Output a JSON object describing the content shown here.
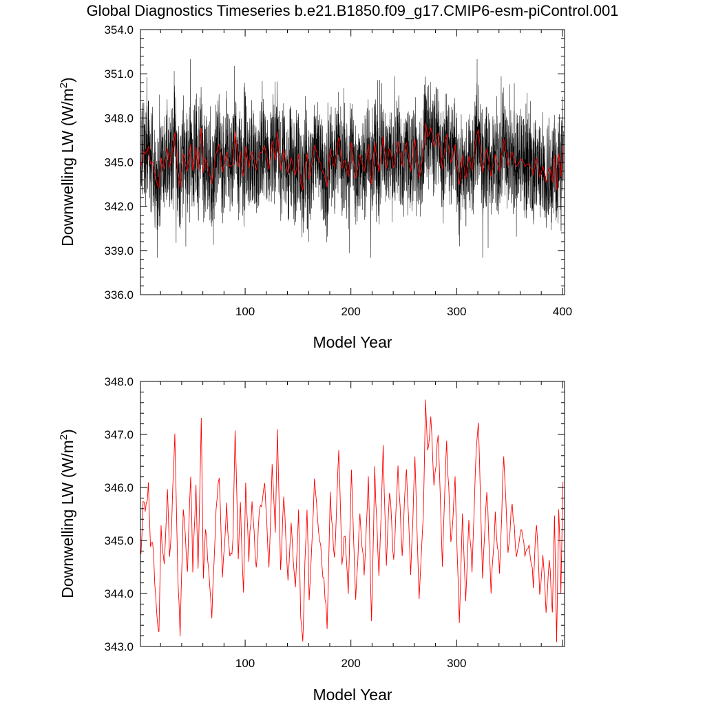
{
  "figure_title": "Global Diagnostics Timeseries b.e21.B1850.f09_g17.CMIP6-esm-piControl.001",
  "colors": {
    "monthly": "#000000",
    "annual": "#ff0000",
    "background": "#ffffff"
  },
  "chart_data": [
    {
      "type": "line",
      "title": "Global Diagnostics Timeseries b.e21.B1850.f09_g17.CMIP6-esm-piControl.001",
      "xlabel": "Model Year",
      "ylabel": "Downwelling LW (W/m",
      "ylabel_sup": "2",
      "ylabel_close": ")",
      "xlim": [
        1,
        402
      ],
      "ylim": [
        336.0,
        354.0
      ],
      "xticks": [
        100,
        200,
        300,
        400
      ],
      "xtick_labels": [
        "100",
        "200",
        "300",
        "400"
      ],
      "yticks": [
        336.0,
        339.0,
        342.0,
        345.0,
        348.0,
        351.0,
        354.0
      ],
      "ytick_labels": [
        "336.0",
        "339.0",
        "342.0",
        "345.0",
        "348.0",
        "351.0",
        "354.0"
      ],
      "series": [
        {
          "name": "monthly",
          "color": "#000000",
          "envelope": {
            "min": 338.5,
            "max": 352.0,
            "typical_low": 340.5,
            "typical_high": 349.5
          }
        },
        {
          "name": "annual",
          "color": "#ff0000",
          "ref": "annual_means"
        }
      ]
    },
    {
      "type": "line",
      "xlabel": "Model Year",
      "ylabel": "Downwelling LW (W/m",
      "ylabel_sup": "2",
      "ylabel_close": ")",
      "xlim": [
        1,
        402
      ],
      "ylim": [
        343.0,
        348.0
      ],
      "xticks": [
        100,
        200,
        300
      ],
      "xtick_labels": [
        "100",
        "200",
        "300"
      ],
      "yticks": [
        343.0,
        344.0,
        345.0,
        346.0,
        347.0,
        348.0
      ],
      "ytick_labels": [
        "343.0",
        "344.0",
        "345.0",
        "346.0",
        "347.0",
        "348.0"
      ],
      "series": [
        {
          "name": "annual",
          "color": "#ff0000",
          "ref": "annual_means"
        }
      ]
    }
  ],
  "annual_keypoints": {
    "years": [
      1,
      3,
      5,
      8,
      10,
      12,
      15,
      18,
      20,
      23,
      26,
      28,
      30,
      33,
      36,
      38,
      41,
      45,
      48,
      50,
      53,
      55,
      58,
      60,
      62,
      65,
      68,
      72,
      75,
      78,
      82,
      85,
      88,
      90,
      93,
      95,
      98,
      100,
      103,
      106,
      110,
      113,
      118,
      122,
      125,
      128,
      130,
      133,
      136,
      140,
      143,
      147,
      150,
      152,
      154,
      156,
      158,
      160,
      165,
      170,
      174,
      177,
      180,
      184,
      188,
      191,
      194,
      197,
      200,
      204,
      208,
      212,
      216,
      219,
      222,
      226,
      230,
      233,
      236,
      240,
      244,
      248,
      252,
      256,
      260,
      264,
      268,
      270,
      272,
      275,
      278,
      282,
      286,
      290,
      294,
      298,
      302,
      305,
      308,
      311,
      314,
      317,
      320,
      324,
      328,
      332,
      336,
      340,
      344,
      348,
      352,
      356,
      360,
      364,
      368,
      372,
      375,
      378,
      381,
      384,
      387,
      390,
      392,
      394,
      396,
      398,
      400,
      402
    ],
    "values": [
      344.7,
      345.7,
      345.5,
      346.0,
      344.8,
      345.0,
      343.9,
      343.2,
      345.2,
      344.5,
      346.0,
      344.6,
      345.3,
      347.1,
      344.2,
      343.2,
      345.6,
      344.4,
      346.3,
      344.5,
      346.0,
      344.5,
      347.2,
      344.4,
      345.3,
      344.5,
      343.6,
      345.5,
      346.3,
      344.3,
      345.6,
      344.6,
      345.0,
      347.1,
      344.7,
      345.6,
      344.0,
      346.0,
      344.7,
      345.8,
      344.4,
      345.6,
      346.0,
      344.4,
      346.5,
      345.1,
      347.1,
      344.4,
      345.9,
      344.2,
      345.4,
      344.0,
      345.5,
      343.6,
      343.1,
      344.5,
      345.7,
      343.9,
      346.1,
      345.0,
      344.2,
      343.4,
      345.8,
      344.6,
      346.7,
      344.6,
      345.2,
      344.0,
      346.3,
      343.9,
      345.4,
      344.4,
      346.1,
      343.5,
      346.3,
      344.2,
      346.7,
      344.5,
      346.0,
      344.6,
      346.3,
      344.8,
      346.4,
      344.3,
      346.5,
      344.0,
      345.5,
      347.7,
      346.6,
      347.4,
      346.0,
      347.0,
      344.6,
      346.9,
      344.9,
      346.1,
      343.4,
      345.5,
      343.8,
      345.5,
      344.4,
      346.3,
      347.2,
      344.2,
      346.0,
      344.0,
      345.5,
      344.4,
      346.6,
      344.7,
      345.8,
      344.6,
      345.3,
      344.8,
      345.0,
      344.2,
      345.4,
      344.0,
      344.8,
      343.6,
      344.7,
      343.7,
      345.5,
      343.1,
      345.7,
      344.1,
      346.0,
      343.5
    ]
  }
}
